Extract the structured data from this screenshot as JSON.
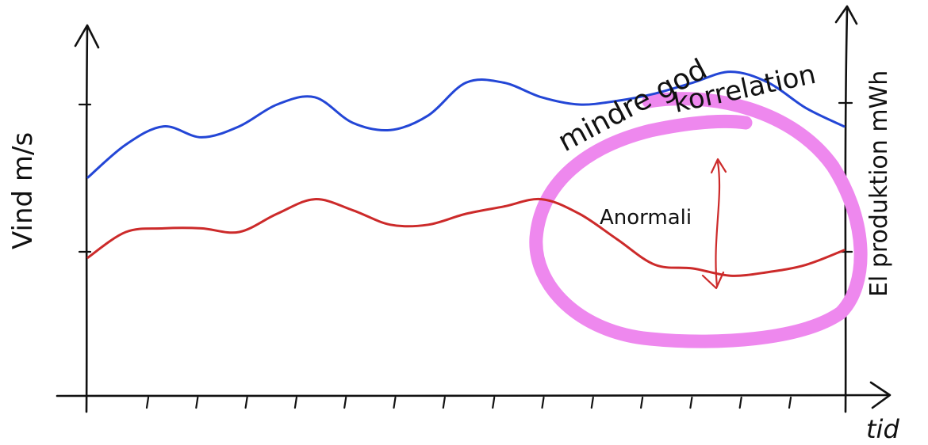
{
  "chart_data": {
    "type": "line",
    "style": "hand-drawn sketch",
    "xlabel": "tid",
    "ylabel_left": "Vind m/s",
    "ylabel_right": "El produktion mWh",
    "x_tick_count": 14,
    "y_tick_count_left": 2,
    "y_tick_count_right": 2,
    "x": [
      0,
      0.05,
      0.1,
      0.15,
      0.2,
      0.25,
      0.3,
      0.35,
      0.4,
      0.45,
      0.5,
      0.55,
      0.6,
      0.65,
      0.7,
      0.75,
      0.8,
      0.85,
      0.9,
      0.95,
      1.0
    ],
    "series": [
      {
        "color": "#2346d6",
        "values": [
          0.6,
          0.69,
          0.74,
          0.71,
          0.74,
          0.8,
          0.82,
          0.75,
          0.73,
          0.77,
          0.86,
          0.86,
          0.82,
          0.8,
          0.81,
          0.83,
          0.86,
          0.89,
          0.86,
          0.79,
          0.74
        ]
      },
      {
        "color": "#cc2a2a",
        "values": [
          0.38,
          0.45,
          0.46,
          0.46,
          0.45,
          0.5,
          0.54,
          0.51,
          0.47,
          0.47,
          0.5,
          0.52,
          0.54,
          0.5,
          0.43,
          0.36,
          0.35,
          0.33,
          0.34,
          0.36,
          0.4
        ]
      }
    ],
    "annotations": {
      "circle_label": "mindre god korrelation",
      "circle_label_line1": "mindre god",
      "circle_label_line2": "korrelation",
      "arrow_label": "Anormali"
    },
    "highlight_color": "#ee88ee",
    "axis_color": "#111111",
    "arrow_color": "#cc2a2a"
  }
}
